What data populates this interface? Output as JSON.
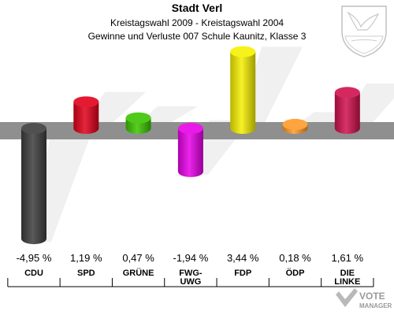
{
  "chart_data": {
    "type": "bar",
    "title": "Stadt Verl",
    "subtitle_line1": "Kreistagswahl 2009 - Kreistagswahl 2004",
    "subtitle_line2": "Gewinne und Verluste 007 Schule Kaunitz, Klasse 3",
    "categories": [
      "CDU",
      "SPD",
      "GRÜNE",
      "FWG-\nUWG",
      "FDP",
      "ÖDP",
      "DIE\nLINKE"
    ],
    "values": [
      -4.95,
      1.19,
      0.47,
      -1.94,
      3.44,
      0.18,
      1.61
    ],
    "value_labels": [
      "-4,95 %",
      "1,19 %",
      "0,47 %",
      "-1,94 %",
      "3,44 %",
      "0,18 %",
      "1,61 %"
    ],
    "colors": [
      "#3d3d3d",
      "#e0001a",
      "#3cc400",
      "#e600e6",
      "#f5f000",
      "#ff9a2a",
      "#d0104f"
    ],
    "shadow_color": "#ececec",
    "band_color": "#8f8f8f",
    "ylim": [
      -5.2,
      3.8
    ],
    "grid": false,
    "legend": "none"
  },
  "logo": {
    "text_top": "VOTE",
    "text_bottom": "MANAGER"
  },
  "crest": {
    "name": "coat-of-arms"
  }
}
